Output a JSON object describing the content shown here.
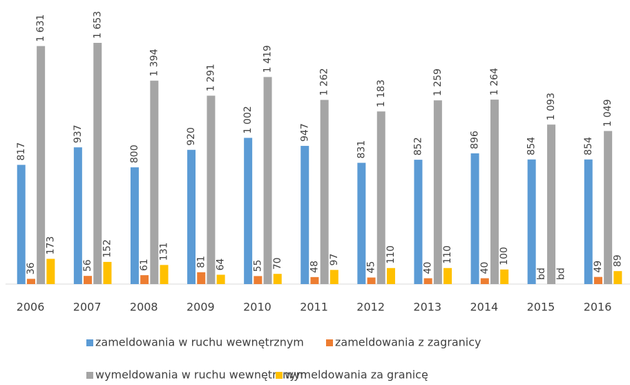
{
  "chart_data": {
    "type": "bar",
    "categories": [
      "2006",
      "2007",
      "2008",
      "2009",
      "2010",
      "2011",
      "2012",
      "2013",
      "2014",
      "2015",
      "2016"
    ],
    "series": [
      {
        "name": "zameldowania w ruchu wewnętrznym",
        "color": "#5b9bd5",
        "values": [
          817,
          937,
          800,
          920,
          1002,
          947,
          831,
          852,
          896,
          854,
          854
        ],
        "value_labels": [
          "817",
          "937",
          "800",
          "920",
          "1 002",
          "947",
          "831",
          "852",
          "896",
          "854",
          "854"
        ]
      },
      {
        "name": "zameldowania z zagranicy",
        "color": "#ed7d31",
        "values": [
          36,
          56,
          61,
          81,
          55,
          48,
          45,
          40,
          40,
          null,
          49
        ],
        "value_labels": [
          "36",
          "56",
          "61",
          "81",
          "55",
          "48",
          "45",
          "40",
          "40",
          "bd",
          "49"
        ]
      },
      {
        "name": "wymeldowania w ruchu wewnętrznym",
        "color": "#a5a5a5",
        "values": [
          1631,
          1653,
          1394,
          1291,
          1419,
          1262,
          1183,
          1259,
          1264,
          1093,
          1049
        ],
        "value_labels": [
          "1 631",
          "1 653",
          "1 394",
          "1 291",
          "1 419",
          "1 262",
          "1 183",
          "1 259",
          "1 264",
          "1 093",
          "1 049"
        ]
      },
      {
        "name": "wymeldowania za granicę",
        "color": "#ffc000",
        "values": [
          173,
          152,
          131,
          64,
          70,
          97,
          110,
          110,
          100,
          null,
          89
        ],
        "value_labels": [
          "173",
          "152",
          "131",
          "64",
          "70",
          "97",
          "110",
          "110",
          "100",
          "bd",
          "89"
        ]
      }
    ]
  }
}
